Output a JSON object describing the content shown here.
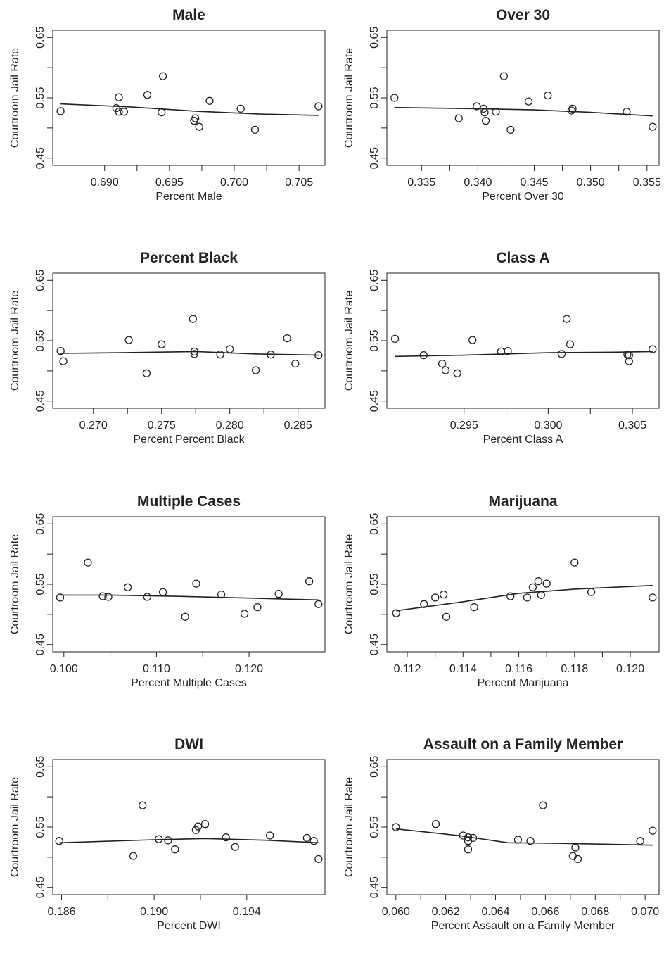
{
  "chart_data": [
    {
      "type": "scatter",
      "title": "Male",
      "xlabel": "Percent Male",
      "ylabel": "Courtroom Jail Rate",
      "xlim": [
        0.6865,
        0.7065
      ],
      "ylim": [
        0.45,
        0.65
      ],
      "xticks": [
        "0.690",
        "0.695",
        "0.700",
        "0.705"
      ],
      "yticks": [
        "0.45",
        "0.55",
        "0.65"
      ],
      "grid": false,
      "points": [
        {
          "x": 0.6866,
          "y": 0.528
        },
        {
          "x": 0.6909,
          "y": 0.533
        },
        {
          "x": 0.6911,
          "y": 0.551
        },
        {
          "x": 0.6911,
          "y": 0.527
        },
        {
          "x": 0.6915,
          "y": 0.527
        },
        {
          "x": 0.6933,
          "y": 0.555
        },
        {
          "x": 0.6944,
          "y": 0.526
        },
        {
          "x": 0.6945,
          "y": 0.586
        },
        {
          "x": 0.6969,
          "y": 0.512
        },
        {
          "x": 0.697,
          "y": 0.516
        },
        {
          "x": 0.6973,
          "y": 0.502
        },
        {
          "x": 0.6981,
          "y": 0.545
        },
        {
          "x": 0.7005,
          "y": 0.532
        },
        {
          "x": 0.7016,
          "y": 0.497
        },
        {
          "x": 0.7065,
          "y": 0.536
        }
      ],
      "smooth": [
        {
          "x": 0.6866,
          "y": 0.54
        },
        {
          "x": 0.692,
          "y": 0.535
        },
        {
          "x": 0.697,
          "y": 0.528
        },
        {
          "x": 0.702,
          "y": 0.523
        },
        {
          "x": 0.7065,
          "y": 0.521
        }
      ]
    },
    {
      "type": "scatter",
      "title": "Over 30",
      "xlabel": "Percent Over 30",
      "ylabel": "Courtroom Jail Rate",
      "xlim": [
        0.3325,
        0.3555
      ],
      "ylim": [
        0.45,
        0.65
      ],
      "xticks": [
        "0.335",
        "0.340",
        "0.345",
        "0.350",
        "0.355"
      ],
      "yticks": [
        "0.45",
        "0.55",
        "0.65"
      ],
      "grid": false,
      "points": [
        {
          "x": 0.3326,
          "y": 0.55
        },
        {
          "x": 0.3383,
          "y": 0.516
        },
        {
          "x": 0.3399,
          "y": 0.536
        },
        {
          "x": 0.3405,
          "y": 0.532
        },
        {
          "x": 0.3406,
          "y": 0.526
        },
        {
          "x": 0.3407,
          "y": 0.512
        },
        {
          "x": 0.3416,
          "y": 0.527
        },
        {
          "x": 0.3423,
          "y": 0.586
        },
        {
          "x": 0.3429,
          "y": 0.497
        },
        {
          "x": 0.3445,
          "y": 0.544
        },
        {
          "x": 0.3462,
          "y": 0.554
        },
        {
          "x": 0.3483,
          "y": 0.529
        },
        {
          "x": 0.3484,
          "y": 0.532
        },
        {
          "x": 0.3532,
          "y": 0.527
        },
        {
          "x": 0.3555,
          "y": 0.502
        }
      ],
      "smooth": [
        {
          "x": 0.3326,
          "y": 0.534
        },
        {
          "x": 0.34,
          "y": 0.532
        },
        {
          "x": 0.345,
          "y": 0.53
        },
        {
          "x": 0.35,
          "y": 0.526
        },
        {
          "x": 0.3555,
          "y": 0.52
        }
      ]
    },
    {
      "type": "scatter",
      "title": "Percent Black",
      "xlabel": "Percent Percent Black",
      "ylabel": "Courtroom Jail Rate",
      "xlim": [
        0.2675,
        0.2865
      ],
      "ylim": [
        0.45,
        0.65
      ],
      "xticks": [
        "0.270",
        "0.275",
        "0.280",
        "0.285"
      ],
      "yticks": [
        "0.45",
        "0.55",
        "0.65"
      ],
      "grid": false,
      "points": [
        {
          "x": 0.2676,
          "y": 0.533
        },
        {
          "x": 0.2678,
          "y": 0.516
        },
        {
          "x": 0.2726,
          "y": 0.551
        },
        {
          "x": 0.2739,
          "y": 0.496
        },
        {
          "x": 0.275,
          "y": 0.544
        },
        {
          "x": 0.2773,
          "y": 0.586
        },
        {
          "x": 0.2774,
          "y": 0.532
        },
        {
          "x": 0.2774,
          "y": 0.528
        },
        {
          "x": 0.2793,
          "y": 0.527
        },
        {
          "x": 0.28,
          "y": 0.536
        },
        {
          "x": 0.2819,
          "y": 0.501
        },
        {
          "x": 0.283,
          "y": 0.527
        },
        {
          "x": 0.2842,
          "y": 0.554
        },
        {
          "x": 0.2848,
          "y": 0.512
        },
        {
          "x": 0.2865,
          "y": 0.526
        }
      ],
      "smooth": [
        {
          "x": 0.2676,
          "y": 0.529
        },
        {
          "x": 0.272,
          "y": 0.53
        },
        {
          "x": 0.2775,
          "y": 0.532
        },
        {
          "x": 0.282,
          "y": 0.528
        },
        {
          "x": 0.2865,
          "y": 0.526
        }
      ]
    },
    {
      "type": "scatter",
      "title": "Class A",
      "xlabel": "Percent Class A",
      "ylabel": "Courtroom Jail Rate",
      "xlim": [
        0.2908,
        0.3062
      ],
      "ylim": [
        0.45,
        0.65
      ],
      "xticks": [
        "0.295",
        "0.300",
        "0.305"
      ],
      "yticks": [
        "0.45",
        "0.55",
        "0.65"
      ],
      "grid": false,
      "points": [
        {
          "x": 0.2909,
          "y": 0.553
        },
        {
          "x": 0.2926,
          "y": 0.526
        },
        {
          "x": 0.2937,
          "y": 0.512
        },
        {
          "x": 0.2939,
          "y": 0.501
        },
        {
          "x": 0.2946,
          "y": 0.496
        },
        {
          "x": 0.2955,
          "y": 0.551
        },
        {
          "x": 0.2972,
          "y": 0.532
        },
        {
          "x": 0.2976,
          "y": 0.533
        },
        {
          "x": 0.3008,
          "y": 0.528
        },
        {
          "x": 0.3011,
          "y": 0.586
        },
        {
          "x": 0.3013,
          "y": 0.544
        },
        {
          "x": 0.3047,
          "y": 0.527
        },
        {
          "x": 0.3048,
          "y": 0.526
        },
        {
          "x": 0.3048,
          "y": 0.516
        },
        {
          "x": 0.3062,
          "y": 0.536
        }
      ],
      "smooth": [
        {
          "x": 0.2909,
          "y": 0.524
        },
        {
          "x": 0.295,
          "y": 0.526
        },
        {
          "x": 0.3,
          "y": 0.53
        },
        {
          "x": 0.304,
          "y": 0.531
        },
        {
          "x": 0.3062,
          "y": 0.532
        }
      ]
    },
    {
      "type": "scatter",
      "title": "Multiple Cases",
      "xlabel": "Percent Multiple Cases",
      "ylabel": "Courtroom Jail Rate",
      "xlim": [
        0.0995,
        0.1275
      ],
      "ylim": [
        0.45,
        0.65
      ],
      "xticks": [
        "0.100",
        "0.110",
        "0.120"
      ],
      "yticks": [
        "0.45",
        "0.55",
        "0.65"
      ],
      "grid": false,
      "points": [
        {
          "x": 0.0996,
          "y": 0.528
        },
        {
          "x": 0.1026,
          "y": 0.586
        },
        {
          "x": 0.1042,
          "y": 0.53
        },
        {
          "x": 0.1048,
          "y": 0.529
        },
        {
          "x": 0.1069,
          "y": 0.545
        },
        {
          "x": 0.109,
          "y": 0.529
        },
        {
          "x": 0.1107,
          "y": 0.537
        },
        {
          "x": 0.1131,
          "y": 0.496
        },
        {
          "x": 0.1143,
          "y": 0.551
        },
        {
          "x": 0.117,
          "y": 0.533
        },
        {
          "x": 0.1195,
          "y": 0.501
        },
        {
          "x": 0.1209,
          "y": 0.512
        },
        {
          "x": 0.1232,
          "y": 0.534
        },
        {
          "x": 0.1265,
          "y": 0.555
        },
        {
          "x": 0.1275,
          "y": 0.517
        }
      ],
      "smooth": [
        {
          "x": 0.0996,
          "y": 0.532
        },
        {
          "x": 0.105,
          "y": 0.532
        },
        {
          "x": 0.112,
          "y": 0.53
        },
        {
          "x": 0.12,
          "y": 0.527
        },
        {
          "x": 0.1275,
          "y": 0.524
        }
      ]
    },
    {
      "type": "scatter",
      "title": "Marijuana",
      "xlabel": "Percent Marijuana",
      "ylabel": "Courtroom Jail Rate",
      "xlim": [
        0.1115,
        0.1208
      ],
      "ylim": [
        0.45,
        0.65
      ],
      "xticks": [
        "0.112",
        "0.114",
        "0.116",
        "0.118",
        "0.120"
      ],
      "yticks": [
        "0.45",
        "0.55",
        "0.65"
      ],
      "grid": false,
      "points": [
        {
          "x": 0.1116,
          "y": 0.502
        },
        {
          "x": 0.1126,
          "y": 0.517
        },
        {
          "x": 0.113,
          "y": 0.528
        },
        {
          "x": 0.1133,
          "y": 0.533
        },
        {
          "x": 0.1134,
          "y": 0.496
        },
        {
          "x": 0.1144,
          "y": 0.512
        },
        {
          "x": 0.1157,
          "y": 0.53
        },
        {
          "x": 0.1163,
          "y": 0.528
        },
        {
          "x": 0.1165,
          "y": 0.545
        },
        {
          "x": 0.1167,
          "y": 0.555
        },
        {
          "x": 0.1168,
          "y": 0.532
        },
        {
          "x": 0.117,
          "y": 0.551
        },
        {
          "x": 0.118,
          "y": 0.586
        },
        {
          "x": 0.1186,
          "y": 0.537
        },
        {
          "x": 0.1208,
          "y": 0.528
        }
      ],
      "smooth": [
        {
          "x": 0.1116,
          "y": 0.506
        },
        {
          "x": 0.114,
          "y": 0.521
        },
        {
          "x": 0.116,
          "y": 0.535
        },
        {
          "x": 0.118,
          "y": 0.542
        },
        {
          "x": 0.1208,
          "y": 0.548
        }
      ]
    },
    {
      "type": "scatter",
      "title": "DWI",
      "xlabel": "Percent DWI",
      "ylabel": "Courtroom Jail Rate",
      "xlim": [
        0.1859,
        0.1971
      ],
      "ylim": [
        0.45,
        0.65
      ],
      "xticks": [
        "0.186",
        "0.190",
        "0.194"
      ],
      "yticks": [
        "0.45",
        "0.55",
        "0.65"
      ],
      "grid": false,
      "points": [
        {
          "x": 0.1859,
          "y": 0.527
        },
        {
          "x": 0.1891,
          "y": 0.502
        },
        {
          "x": 0.1895,
          "y": 0.586
        },
        {
          "x": 0.1902,
          "y": 0.53
        },
        {
          "x": 0.1906,
          "y": 0.528
        },
        {
          "x": 0.1909,
          "y": 0.513
        },
        {
          "x": 0.1918,
          "y": 0.545
        },
        {
          "x": 0.1919,
          "y": 0.551
        },
        {
          "x": 0.1922,
          "y": 0.555
        },
        {
          "x": 0.1931,
          "y": 0.533
        },
        {
          "x": 0.1935,
          "y": 0.517
        },
        {
          "x": 0.195,
          "y": 0.536
        },
        {
          "x": 0.1966,
          "y": 0.532
        },
        {
          "x": 0.1969,
          "y": 0.527
        },
        {
          "x": 0.1971,
          "y": 0.497
        }
      ],
      "smooth": [
        {
          "x": 0.1859,
          "y": 0.524
        },
        {
          "x": 0.19,
          "y": 0.529
        },
        {
          "x": 0.1922,
          "y": 0.531
        },
        {
          "x": 0.195,
          "y": 0.528
        },
        {
          "x": 0.1971,
          "y": 0.524
        }
      ]
    },
    {
      "type": "scatter",
      "title": "Assault on a Family Member",
      "xlabel": "Percent Assault on a Family Member",
      "ylabel": "Courtroom Jail Rate",
      "xlim": [
        0.0599,
        0.0703
      ],
      "ylim": [
        0.45,
        0.65
      ],
      "xticks": [
        "0.060",
        "0.062",
        "0.064",
        "0.066",
        "0.068",
        "0.070"
      ],
      "yticks": [
        "0.45",
        "0.55",
        "0.65"
      ],
      "grid": false,
      "points": [
        {
          "x": 0.06,
          "y": 0.55
        },
        {
          "x": 0.0616,
          "y": 0.555
        },
        {
          "x": 0.0627,
          "y": 0.536
        },
        {
          "x": 0.0629,
          "y": 0.533
        },
        {
          "x": 0.0629,
          "y": 0.527
        },
        {
          "x": 0.0629,
          "y": 0.513
        },
        {
          "x": 0.0631,
          "y": 0.532
        },
        {
          "x": 0.0649,
          "y": 0.529
        },
        {
          "x": 0.0654,
          "y": 0.527
        },
        {
          "x": 0.0659,
          "y": 0.586
        },
        {
          "x": 0.0671,
          "y": 0.502
        },
        {
          "x": 0.0672,
          "y": 0.516
        },
        {
          "x": 0.0673,
          "y": 0.497
        },
        {
          "x": 0.0698,
          "y": 0.527
        },
        {
          "x": 0.0703,
          "y": 0.544
        }
      ],
      "smooth": [
        {
          "x": 0.06,
          "y": 0.547
        },
        {
          "x": 0.0625,
          "y": 0.536
        },
        {
          "x": 0.0645,
          "y": 0.524
        },
        {
          "x": 0.0665,
          "y": 0.523
        },
        {
          "x": 0.0703,
          "y": 0.52
        }
      ]
    }
  ]
}
